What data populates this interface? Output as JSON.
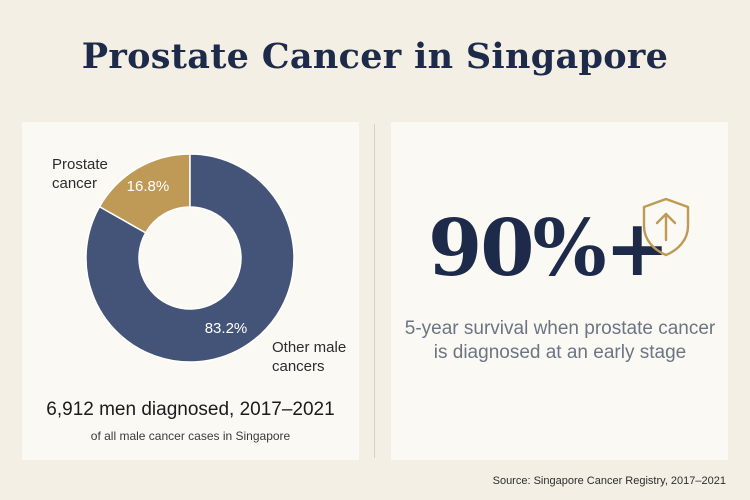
{
  "title": "Prostate Cancer in Singapore",
  "chart_data": {
    "type": "pie",
    "categories": [
      "Prostate cancer",
      "Other male cancers"
    ],
    "values": [
      16.8,
      83.2
    ],
    "value_labels": [
      "16.8%",
      "83.2%"
    ],
    "colors": [
      "#bf9a57",
      "#435478"
    ]
  },
  "donut_labels": {
    "prostate": "Prostate cancer",
    "other": "Other male cancers"
  },
  "stats": {
    "diagnosed": "6,912 men diagnosed, 2017–2021",
    "diagnosed_sub": "of all male cancer cases in Singapore"
  },
  "survival": {
    "big_number": "90%+",
    "description": "5-year survival when prostate cancer is diagnosed at an early stage",
    "icon": "shield-arrow-up-icon",
    "icon_color": "#bf9a57"
  },
  "source": "Source: Singapore Cancer Registry, 2017–2021"
}
